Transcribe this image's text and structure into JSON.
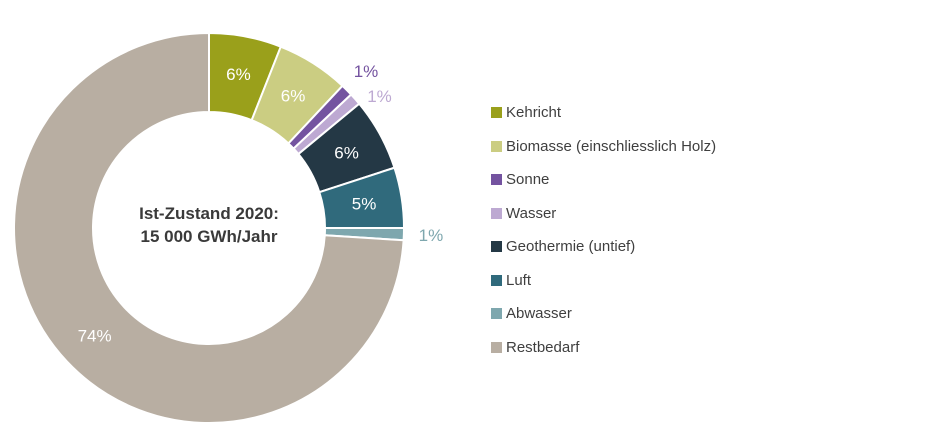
{
  "chart_data": {
    "type": "pie",
    "subtype": "donut",
    "title": "",
    "unit": "%",
    "legend_position": "right",
    "center_label": [
      "Ist-Zustand 2020:",
      "15 000 GWh/Jahr"
    ],
    "center_label_color": "#3a3a3a",
    "inside_label_color": "#ffffff",
    "legend_text_color": "#3f3f3f",
    "background_color": "#ffffff",
    "start_angle_deg": 0,
    "direction": "clockwise",
    "slices": [
      {
        "label": "Kehricht",
        "value": 6,
        "display": "6%",
        "color": "#9aa01b",
        "label_position": "inside"
      },
      {
        "label": "Biomasse (einschliesslich Holz)",
        "value": 6,
        "display": "6%",
        "color": "#cbcd82",
        "label_position": "inside"
      },
      {
        "label": "Sonne",
        "value": 1,
        "display": "1%",
        "color": "#7453a0",
        "label_position": "outside"
      },
      {
        "label": "Wasser",
        "value": 1,
        "display": "1%",
        "color": "#bda9d2",
        "label_position": "outside",
        "label_offset": [
          4,
          15
        ]
      },
      {
        "label": "Geothermie (untief)",
        "value": 6,
        "display": "6%",
        "color": "#243845",
        "label_position": "inside"
      },
      {
        "label": "Luft",
        "value": 5,
        "display": "5%",
        "color": "#306a7c",
        "label_position": "inside"
      },
      {
        "label": "Abwasser",
        "value": 1,
        "display": "1%",
        "color": "#7ea7ae",
        "label_position": "outside"
      },
      {
        "label": "Restbedarf",
        "value": 74,
        "display": "74%",
        "color": "#b8aea2",
        "label_position": "inside"
      }
    ]
  }
}
